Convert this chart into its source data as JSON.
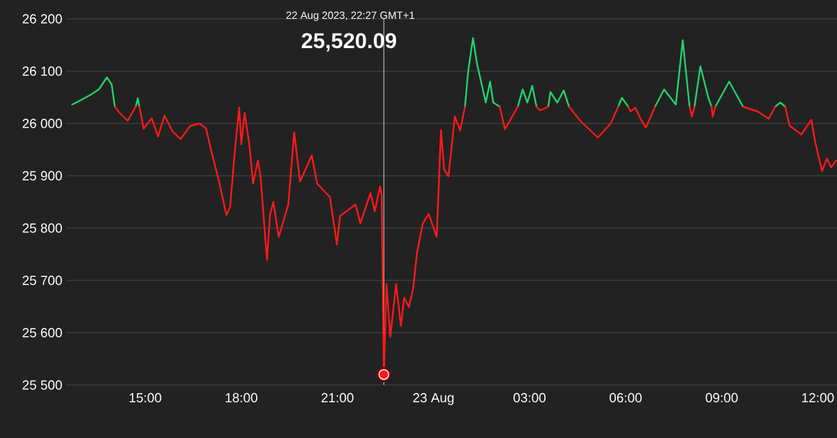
{
  "chart_data": {
    "type": "line",
    "x": [
      "2023-08-22T12:43",
      "2023-08-22T13:00",
      "2023-08-22T13:18",
      "2023-08-22T13:33",
      "2023-08-22T13:48",
      "2023-08-22T13:57",
      "2023-08-22T14:03",
      "2023-08-22T14:12",
      "2023-08-22T14:27",
      "2023-08-22T14:42",
      "2023-08-22T14:46",
      "2023-08-22T14:49",
      "2023-08-22T14:57",
      "2023-08-22T15:12",
      "2023-08-22T15:24",
      "2023-08-22T15:36",
      "2023-08-22T15:51",
      "2023-08-22T16:06",
      "2023-08-22T16:24",
      "2023-08-22T16:42",
      "2023-08-22T16:54",
      "2023-08-22T17:03",
      "2023-08-22T17:18",
      "2023-08-22T17:32",
      "2023-08-22T17:39",
      "2023-08-22T17:48",
      "2023-08-22T17:56",
      "2023-08-22T18:00",
      "2023-08-22T18:06",
      "2023-08-22T18:15",
      "2023-08-22T18:22",
      "2023-08-22T18:31",
      "2023-08-22T18:36",
      "2023-08-22T18:48",
      "2023-08-22T18:54",
      "2023-08-22T19:00",
      "2023-08-22T19:10",
      "2023-08-22T19:28",
      "2023-08-22T19:39",
      "2023-08-22T19:50",
      "2023-08-22T20:12",
      "2023-08-22T20:22",
      "2023-08-22T20:46",
      "2023-08-22T20:59",
      "2023-08-22T21:05",
      "2023-08-22T21:34",
      "2023-08-22T21:43",
      "2023-08-22T22:02",
      "2023-08-22T22:10",
      "2023-08-22T22:20",
      "2023-08-22T22:23",
      "2023-08-22T22:27",
      "2023-08-22T22:32",
      "2023-08-22T22:39",
      "2023-08-22T22:50",
      "2023-08-22T22:59",
      "2023-08-22T23:05",
      "2023-08-22T23:14",
      "2023-08-22T23:22",
      "2023-08-22T23:29",
      "2023-08-22T23:40",
      "2023-08-22T23:51",
      "2023-08-23T00:06",
      "2023-08-23T00:14",
      "2023-08-23T00:20",
      "2023-08-23T00:28",
      "2023-08-23T00:40",
      "2023-08-23T00:50",
      "2023-08-23T00:59",
      "2023-08-23T01:05",
      "2023-08-23T01:14",
      "2023-08-23T01:22",
      "2023-08-23T01:38",
      "2023-08-23T01:46",
      "2023-08-23T01:52",
      "2023-08-23T02:04",
      "2023-08-23T02:14",
      "2023-08-23T02:38",
      "2023-08-23T02:47",
      "2023-08-23T02:56",
      "2023-08-23T03:05",
      "2023-08-23T03:13",
      "2023-08-23T03:20",
      "2023-08-23T03:35",
      "2023-08-23T03:39",
      "2023-08-23T03:52",
      "2023-08-23T04:04",
      "2023-08-23T04:14",
      "2023-08-23T04:35",
      "2023-08-23T05:08",
      "2023-08-23T05:32",
      "2023-08-23T05:46",
      "2023-08-23T05:53",
      "2023-08-23T06:05",
      "2023-08-23T06:09",
      "2023-08-23T06:18",
      "2023-08-23T06:29",
      "2023-08-23T06:38",
      "2023-08-23T06:55",
      "2023-08-23T07:12",
      "2023-08-23T07:34",
      "2023-08-23T07:47",
      "2023-08-23T07:58",
      "2023-08-23T08:00",
      "2023-08-23T08:04",
      "2023-08-23T08:09",
      "2023-08-23T08:20",
      "2023-08-23T08:35",
      "2023-08-23T08:41",
      "2023-08-23T08:43",
      "2023-08-23T08:48",
      "2023-08-23T09:14",
      "2023-08-23T09:40",
      "2023-08-23T10:07",
      "2023-08-23T10:28",
      "2023-08-23T10:40",
      "2023-08-23T10:50",
      "2023-08-23T10:59",
      "2023-08-23T11:07",
      "2023-08-23T11:29",
      "2023-08-23T11:48",
      "2023-08-23T11:55",
      "2023-08-23T12:08",
      "2023-08-23T12:17",
      "2023-08-23T12:25",
      "2023-08-23T12:34"
    ],
    "series": [
      {
        "color": "#22d36e",
        "values": [
          26036,
          26045,
          26055,
          26065,
          26088,
          26075,
          26032,
          null,
          null,
          26032,
          26048,
          26032,
          null,
          null,
          null,
          null,
          null,
          null,
          null,
          null,
          null,
          null,
          null,
          null,
          null,
          null,
          null,
          null,
          null,
          null,
          null,
          null,
          null,
          null,
          null,
          null,
          null,
          null,
          null,
          null,
          null,
          null,
          null,
          null,
          null,
          null,
          null,
          null,
          null,
          null,
          null,
          null,
          null,
          null,
          null,
          null,
          null,
          null,
          null,
          null,
          null,
          null,
          null,
          null,
          null,
          null,
          null,
          null,
          26032,
          26100,
          26163,
          26112,
          26040,
          26080,
          26040,
          26032,
          null,
          26032,
          26065,
          26040,
          26072,
          26032,
          null,
          26032,
          26060,
          26040,
          26063,
          26032,
          null,
          null,
          null,
          26032,
          26049,
          26032,
          null,
          null,
          null,
          null,
          26032,
          26065,
          26036,
          26159,
          26049,
          26032,
          null,
          26032,
          26109,
          26049,
          26032,
          null,
          26032,
          26080,
          26032,
          null,
          null,
          26032,
          26040,
          26032,
          null,
          null,
          null,
          null,
          null,
          null,
          null,
          null
        ]
      },
      {
        "color": "#ff1a1a",
        "values": [
          null,
          null,
          null,
          null,
          null,
          null,
          26032,
          26020,
          26005,
          26032,
          null,
          26032,
          25990,
          26010,
          25975,
          26015,
          25985,
          25970,
          25995,
          26000,
          25990,
          25950,
          25890,
          25825,
          25840,
          25950,
          26030,
          25960,
          26020,
          25960,
          25885,
          25929,
          25899,
          25739,
          25827,
          25850,
          25783,
          25845,
          25983,
          25889,
          25939,
          25885,
          25859,
          25769,
          25823,
          25845,
          25809,
          25867,
          25832,
          25880,
          25863,
          25520.09,
          25693,
          25592,
          25693,
          25613,
          25667,
          25649,
          25685,
          25752,
          25809,
          25827,
          25783,
          25987,
          25912,
          25899,
          26013,
          25987,
          26032,
          null,
          null,
          null,
          null,
          null,
          null,
          26032,
          25989,
          26032,
          null,
          null,
          null,
          26032,
          26025,
          26032,
          null,
          null,
          null,
          26032,
          26005,
          25973,
          26000,
          26032,
          null,
          26032,
          26023,
          26030,
          26007,
          25992,
          26032,
          null,
          null,
          null,
          null,
          26032,
          26013,
          26032,
          null,
          null,
          26032,
          26013,
          26032,
          null,
          26032,
          26023,
          26009,
          26032,
          null,
          26032,
          25996,
          25979,
          26007,
          25965,
          25909,
          25933,
          25916,
          25929
        ]
      }
    ],
    "xlim": [
      "2023-08-22T12:32",
      "2023-08-23T12:36"
    ],
    "xticks": [
      {
        "value": "2023-08-22T15:00",
        "label": "15:00"
      },
      {
        "value": "2023-08-22T18:00",
        "label": "18:00"
      },
      {
        "value": "2023-08-22T21:00",
        "label": "21:00"
      },
      {
        "value": "2023-08-23T00:00",
        "label": "23 Aug"
      },
      {
        "value": "2023-08-23T03:00",
        "label": "03:00"
      },
      {
        "value": "2023-08-23T06:00",
        "label": "06:00"
      },
      {
        "value": "2023-08-23T09:00",
        "label": "09:00"
      },
      {
        "value": "2023-08-23T12:00",
        "label": "12:00"
      }
    ],
    "ylim": [
      25500,
      26200
    ],
    "yticks": [
      {
        "value": 25500,
        "label": "25 500"
      },
      {
        "value": 25600,
        "label": "25 600"
      },
      {
        "value": 25700,
        "label": "25 700"
      },
      {
        "value": 25800,
        "label": "25 800"
      },
      {
        "value": 25900,
        "label": "25 900"
      },
      {
        "value": 26000,
        "label": "26 000"
      },
      {
        "value": 26100,
        "label": "26 100"
      },
      {
        "value": 26200,
        "label": "26 200"
      }
    ],
    "grid": "y",
    "ref_lines": [
      {
        "axis": "x",
        "value": "2023-08-22T22:27",
        "color": "#ffffff"
      }
    ],
    "annotations": [
      "22 Aug 2023, 22:27 GMT+1",
      "25,520.09"
    ]
  }
}
